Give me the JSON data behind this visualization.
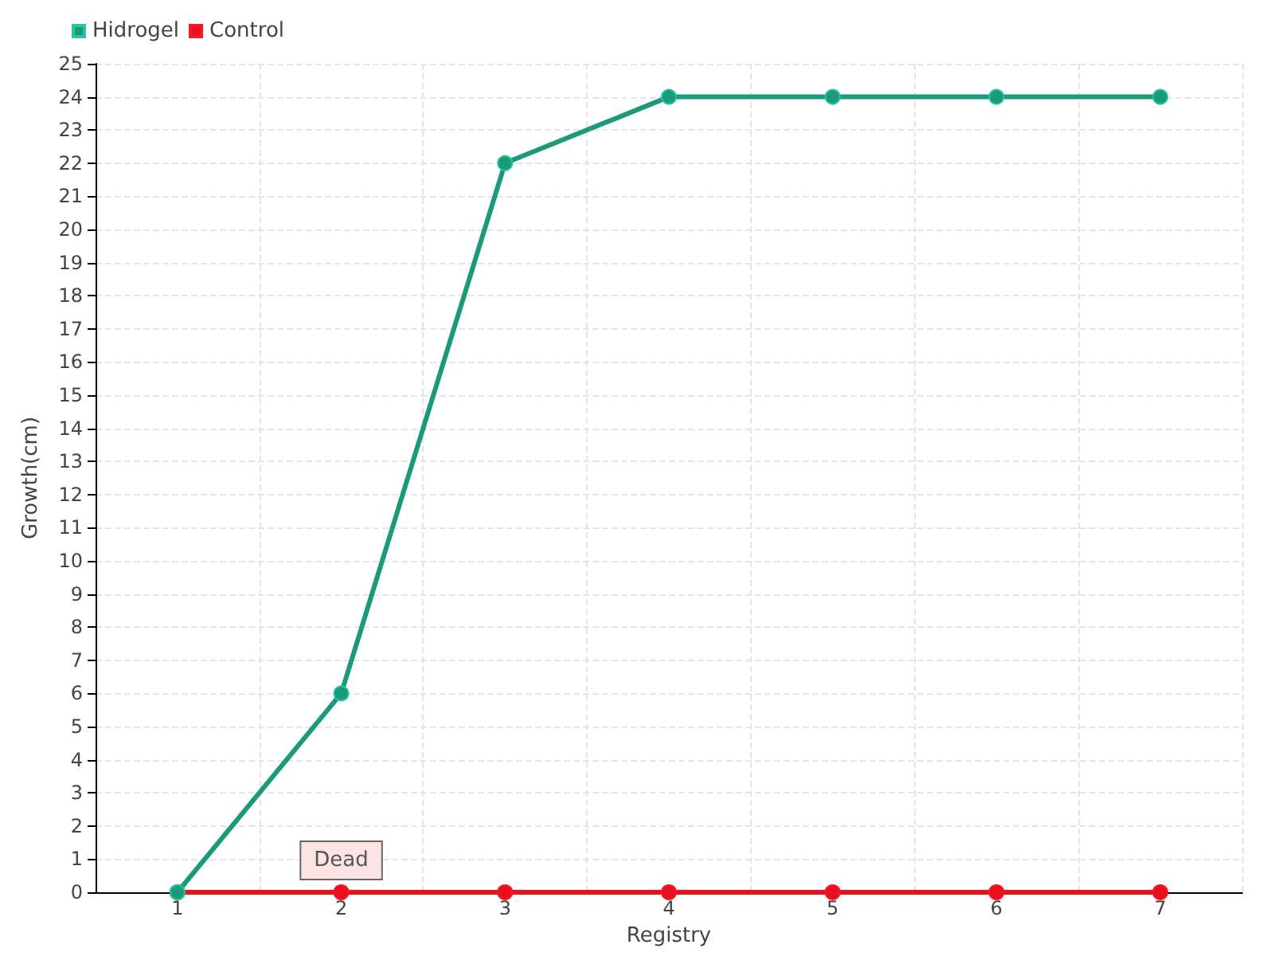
{
  "chart_data": {
    "type": "line",
    "xlabel": "Registry",
    "ylabel": "Growth(cm)",
    "categories": [
      "1",
      "2",
      "3",
      "4",
      "5",
      "6",
      "7"
    ],
    "series": [
      {
        "name": "Hidrogel",
        "color": "#1a9a7a",
        "values": [
          0,
          6,
          22,
          24,
          24,
          24,
          24
        ]
      },
      {
        "name": "Control",
        "color": "#e8101e",
        "values": [
          0,
          0,
          0,
          0,
          0,
          0,
          0
        ]
      }
    ],
    "ylim": [
      0,
      25
    ],
    "yticks": [
      0,
      1,
      2,
      3,
      4,
      5,
      6,
      7,
      8,
      9,
      10,
      11,
      12,
      13,
      14,
      15,
      16,
      17,
      18,
      19,
      20,
      21,
      22,
      23,
      24,
      25
    ],
    "grid": true,
    "legend": "top left",
    "marker": "circle",
    "line_style": "solid",
    "annotations": [
      {
        "text": "Dead",
        "x": "2",
        "y": 0
      }
    ]
  }
}
